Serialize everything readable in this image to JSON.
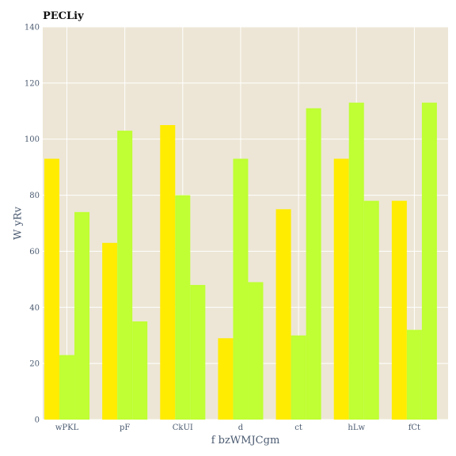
{
  "chart_data": {
    "type": "bar",
    "title": "PECLiy",
    "xlabel": "f bzWMJCgm",
    "ylabel": "W yRv",
    "categories": [
      "wPKL",
      "pF",
      "CkUI",
      "d",
      "ct",
      "hLw",
      "fCt"
    ],
    "series": [
      {
        "color": "#ffec00",
        "values": [
          93,
          63,
          105,
          29,
          75,
          93,
          78
        ]
      },
      {
        "color": "#bfff33",
        "values": [
          23,
          103,
          80,
          93,
          30,
          113,
          32
        ]
      },
      {
        "color": "#bfff33",
        "values": [
          74,
          35,
          48,
          49,
          111,
          78,
          113
        ]
      }
    ],
    "ylim": [
      0,
      140
    ],
    "yticks": [
      0,
      20,
      40,
      60,
      80,
      100,
      120,
      140
    ],
    "grid": true,
    "legend": "none",
    "colors": {
      "plot_background": "#ede6d6",
      "grid": "#ffffff"
    }
  }
}
